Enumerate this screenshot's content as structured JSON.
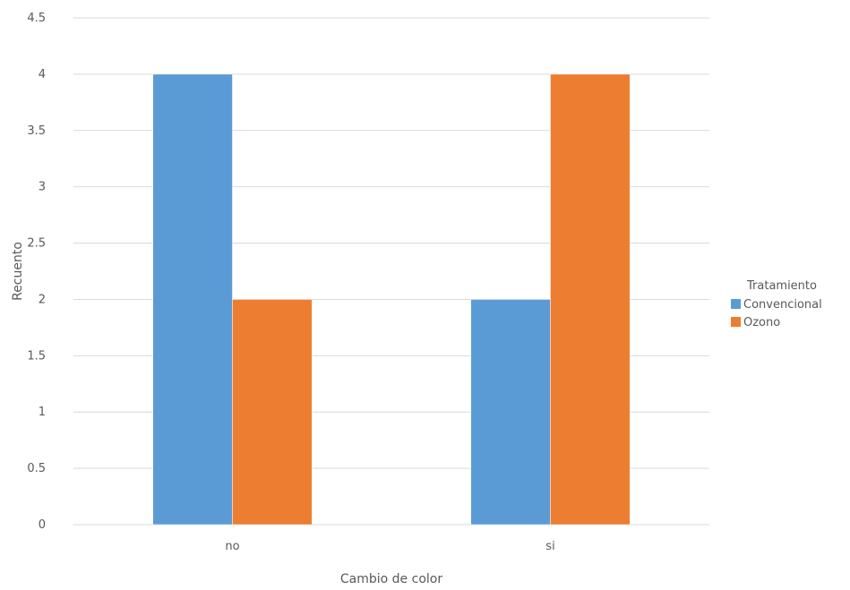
{
  "chart_data": {
    "type": "bar",
    "categories": [
      "no",
      "si"
    ],
    "series": [
      {
        "name": "Convencional",
        "values": [
          4,
          2
        ],
        "color": "#5b9bd5"
      },
      {
        "name": "Ozono",
        "values": [
          2,
          4
        ],
        "color": "#ed7d31"
      }
    ],
    "xlabel": "Cambio de color",
    "ylabel": "Recuento",
    "ylim": [
      0,
      4.5
    ],
    "yticks": [
      "0",
      "0.5",
      "1",
      "1.5",
      "2",
      "2.5",
      "3",
      "3.5",
      "4",
      "4.5"
    ],
    "grid": true,
    "legend": {
      "title": "Tratamiento",
      "placement": "right"
    }
  }
}
